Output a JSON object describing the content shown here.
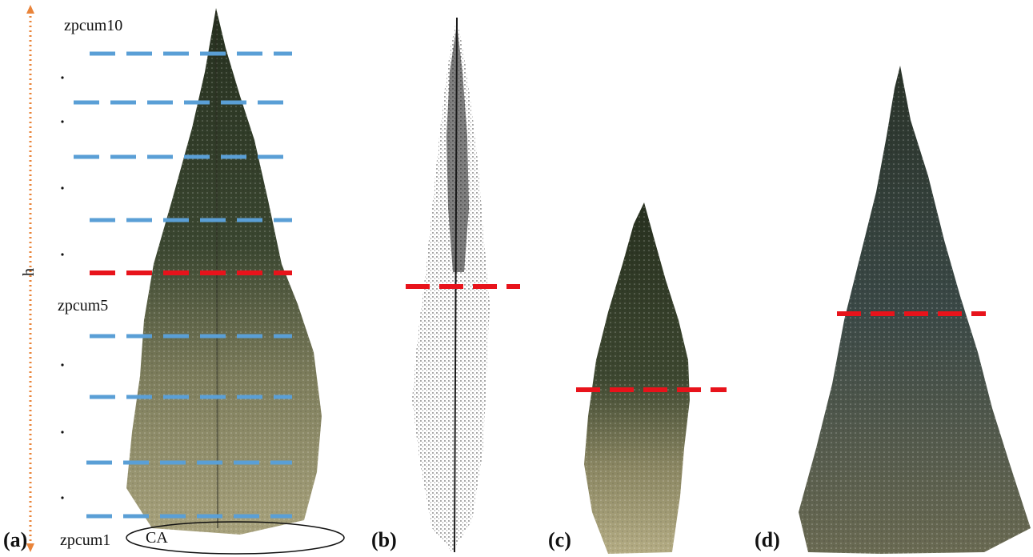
{
  "figure": {
    "axis_label": "h",
    "level_labels": {
      "top": "zpcum10",
      "middle": "zpcum5",
      "bottom": "zpcum1"
    },
    "base_label": "CA",
    "panels": [
      "(a)",
      "(b)",
      "(c)",
      "(d)"
    ],
    "colors": {
      "height_arrow": "#e9843a",
      "level_line": "#5a9fd6",
      "reference_line": "#e8131b",
      "foliage_dark": "#2e3827",
      "foliage_light": "#b7ae86",
      "pointcloud": "#1a1a1a",
      "bluish_foliage": "#3e4d4c"
    },
    "icons": [
      "tree-a-icon",
      "tree-b-pointcloud-icon",
      "tree-c-icon",
      "tree-d-icon"
    ]
  }
}
